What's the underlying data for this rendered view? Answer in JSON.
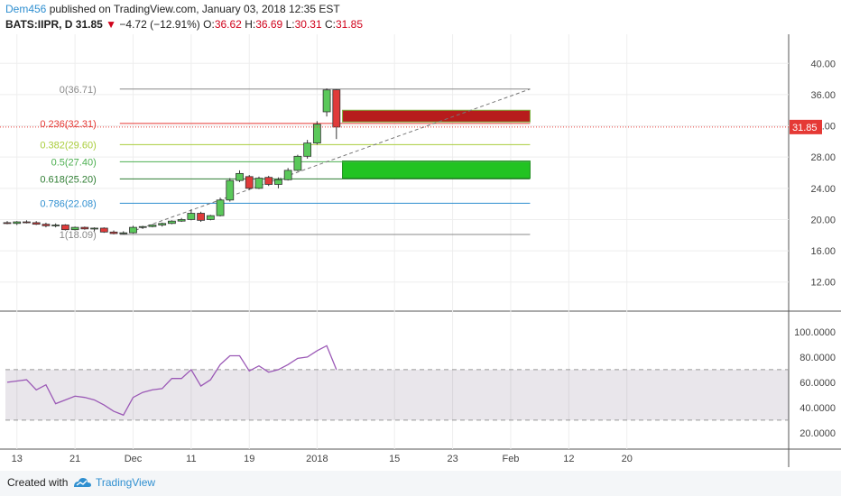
{
  "header": {
    "author": "Dem456",
    "published": "published on TradingView.com, January 03, 2018 12:35 EST",
    "symbol": "BATS:IIPR, D",
    "last": "31.85",
    "down_arrow": "▼",
    "change": "−4.72 (−12.91%)",
    "o_label": "O:",
    "o_value": "36.62",
    "h_label": "H:",
    "h_value": "36.69",
    "l_label": "L:",
    "l_value": "30.31",
    "c_label": "C:",
    "c_value": "31.85"
  },
  "footer": {
    "created_with": "Created with",
    "brand": "TradingView"
  },
  "colors": {
    "up": "#5ac85a",
    "down": "#e03a3a",
    "rsi": "#9b59b6",
    "price_line": "#e53935",
    "fib_0_236": "#e53935",
    "fib_0_382": "#aacd3c",
    "fib_0_5": "#4caf50",
    "fib_0_618": "#2e7d32",
    "fib_0_786": "#2f8fd0",
    "fib_neutral": "#888888"
  },
  "chart_data": {
    "type": "candlestick",
    "price_axis": {
      "range": [
        8.5,
        43.5
      ],
      "ticks": [
        "12.00",
        "16.00",
        "20.00",
        "24.00",
        "28.00",
        "32.00",
        "36.00",
        "40.00"
      ]
    },
    "rsi_axis": {
      "range": [
        7,
        115
      ],
      "ticks": [
        "20.0000",
        "40.0000",
        "60.0000",
        "80.0000",
        "100.0000"
      ],
      "bands": [
        30,
        70
      ]
    },
    "x_axis": {
      "ticks": [
        {
          "label": "13",
          "i": 1
        },
        {
          "label": "21",
          "i": 7
        },
        {
          "label": "Dec",
          "i": 13
        },
        {
          "label": "11",
          "i": 19
        },
        {
          "label": "19",
          "i": 25
        },
        {
          "label": "2018",
          "i": 32
        },
        {
          "label": "15",
          "i": 40
        },
        {
          "label": "23",
          "i": 46
        },
        {
          "label": "Feb",
          "i": 52
        },
        {
          "label": "12",
          "i": 58
        },
        {
          "label": "20",
          "i": 64
        }
      ]
    },
    "last_price_label": "31.85",
    "candles": [
      {
        "i": 0,
        "o": 19.6,
        "h": 19.8,
        "l": 19.4,
        "c": 19.5
      },
      {
        "i": 1,
        "o": 19.5,
        "h": 19.8,
        "l": 19.3,
        "c": 19.7
      },
      {
        "i": 2,
        "o": 19.7,
        "h": 19.9,
        "l": 19.5,
        "c": 19.6
      },
      {
        "i": 3,
        "o": 19.6,
        "h": 19.8,
        "l": 19.3,
        "c": 19.4
      },
      {
        "i": 4,
        "o": 19.4,
        "h": 19.6,
        "l": 19.0,
        "c": 19.2
      },
      {
        "i": 5,
        "o": 19.2,
        "h": 19.5,
        "l": 19.0,
        "c": 19.3
      },
      {
        "i": 6,
        "o": 19.3,
        "h": 19.4,
        "l": 18.6,
        "c": 18.7
      },
      {
        "i": 7,
        "o": 18.7,
        "h": 19.1,
        "l": 18.6,
        "c": 19.0
      },
      {
        "i": 8,
        "o": 19.0,
        "h": 19.1,
        "l": 18.7,
        "c": 18.8
      },
      {
        "i": 9,
        "o": 18.8,
        "h": 19.0,
        "l": 18.5,
        "c": 18.9
      },
      {
        "i": 10,
        "o": 18.9,
        "h": 19.0,
        "l": 18.3,
        "c": 18.4
      },
      {
        "i": 11,
        "o": 18.4,
        "h": 18.6,
        "l": 18.1,
        "c": 18.2
      },
      {
        "i": 12,
        "o": 18.2,
        "h": 18.5,
        "l": 18.1,
        "c": 18.3
      },
      {
        "i": 13,
        "o": 18.3,
        "h": 19.2,
        "l": 18.2,
        "c": 19.0
      },
      {
        "i": 14,
        "o": 19.0,
        "h": 19.2,
        "l": 18.8,
        "c": 19.1
      },
      {
        "i": 15,
        "o": 19.1,
        "h": 19.4,
        "l": 19.0,
        "c": 19.3
      },
      {
        "i": 16,
        "o": 19.3,
        "h": 19.6,
        "l": 19.1,
        "c": 19.5
      },
      {
        "i": 17,
        "o": 19.5,
        "h": 19.9,
        "l": 19.4,
        "c": 19.8
      },
      {
        "i": 18,
        "o": 19.8,
        "h": 20.2,
        "l": 19.7,
        "c": 20.0
      },
      {
        "i": 19,
        "o": 20.0,
        "h": 21.3,
        "l": 19.9,
        "c": 20.8
      },
      {
        "i": 20,
        "o": 20.8,
        "h": 21.0,
        "l": 19.7,
        "c": 19.9
      },
      {
        "i": 21,
        "o": 20.0,
        "h": 20.6,
        "l": 19.9,
        "c": 20.5
      },
      {
        "i": 22,
        "o": 20.5,
        "h": 22.8,
        "l": 20.4,
        "c": 22.5
      },
      {
        "i": 23,
        "o": 22.5,
        "h": 25.3,
        "l": 22.3,
        "c": 25.0
      },
      {
        "i": 24,
        "o": 25.0,
        "h": 26.3,
        "l": 24.8,
        "c": 25.9
      },
      {
        "i": 25,
        "o": 25.5,
        "h": 25.7,
        "l": 23.8,
        "c": 24.0
      },
      {
        "i": 26,
        "o": 24.0,
        "h": 25.5,
        "l": 23.9,
        "c": 25.3
      },
      {
        "i": 27,
        "o": 25.4,
        "h": 25.6,
        "l": 24.3,
        "c": 24.5
      },
      {
        "i": 28,
        "o": 24.5,
        "h": 25.4,
        "l": 24.0,
        "c": 25.1
      },
      {
        "i": 29,
        "o": 25.1,
        "h": 26.6,
        "l": 25.0,
        "c": 26.3
      },
      {
        "i": 30,
        "o": 26.3,
        "h": 28.3,
        "l": 26.2,
        "c": 28.1
      },
      {
        "i": 31,
        "o": 28.1,
        "h": 30.2,
        "l": 27.8,
        "c": 29.8
      },
      {
        "i": 32,
        "o": 29.8,
        "h": 32.6,
        "l": 29.6,
        "c": 32.2
      },
      {
        "i": 33,
        "o": 33.8,
        "h": 36.8,
        "l": 33.2,
        "c": 36.6
      },
      {
        "i": 34,
        "o": 36.62,
        "h": 36.69,
        "l": 30.31,
        "c": 31.85
      }
    ],
    "rsi": [
      {
        "i": 0,
        "v": 60
      },
      {
        "i": 1,
        "v": 61
      },
      {
        "i": 2,
        "v": 62
      },
      {
        "i": 3,
        "v": 54
      },
      {
        "i": 4,
        "v": 58
      },
      {
        "i": 5,
        "v": 43
      },
      {
        "i": 6,
        "v": 46
      },
      {
        "i": 7,
        "v": 49
      },
      {
        "i": 8,
        "v": 48
      },
      {
        "i": 9,
        "v": 46
      },
      {
        "i": 10,
        "v": 42
      },
      {
        "i": 11,
        "v": 37
      },
      {
        "i": 12,
        "v": 34
      },
      {
        "i": 13,
        "v": 48
      },
      {
        "i": 14,
        "v": 52
      },
      {
        "i": 15,
        "v": 54
      },
      {
        "i": 16,
        "v": 55
      },
      {
        "i": 17,
        "v": 63
      },
      {
        "i": 18,
        "v": 63
      },
      {
        "i": 19,
        "v": 70
      },
      {
        "i": 20,
        "v": 57
      },
      {
        "i": 21,
        "v": 62
      },
      {
        "i": 22,
        "v": 74
      },
      {
        "i": 23,
        "v": 81
      },
      {
        "i": 24,
        "v": 81
      },
      {
        "i": 25,
        "v": 69
      },
      {
        "i": 26,
        "v": 73
      },
      {
        "i": 27,
        "v": 68
      },
      {
        "i": 28,
        "v": 70
      },
      {
        "i": 29,
        "v": 74
      },
      {
        "i": 30,
        "v": 79
      },
      {
        "i": 31,
        "v": 80
      },
      {
        "i": 32,
        "v": 85
      },
      {
        "i": 33,
        "v": 89
      },
      {
        "i": 34,
        "v": 70
      }
    ],
    "fib_levels": [
      {
        "label": "0(36.71)",
        "price": 36.71,
        "key": "fib_neutral"
      },
      {
        "label": "0.236(32.31)",
        "price": 32.31,
        "key": "fib_0_236"
      },
      {
        "label": "0.382(29.60)",
        "price": 29.6,
        "key": "fib_0_382"
      },
      {
        "label": "0.5(27.40)",
        "price": 27.4,
        "key": "fib_0_5"
      },
      {
        "label": "0.618(25.20)",
        "price": 25.2,
        "key": "fib_0_618"
      },
      {
        "label": "0.786(22.08)",
        "price": 22.08,
        "key": "fib_0_786"
      },
      {
        "label": "1(18.09)",
        "price": 18.09,
        "key": "fib_neutral"
      }
    ],
    "fib_range": {
      "start_i": 12,
      "end_i": 54
    },
    "zones": [
      {
        "top": 34.0,
        "bottom": 32.5,
        "start_i": 35,
        "end_i": 54,
        "fill": "#b71c1c",
        "stroke": "#7cb342"
      },
      {
        "top": 27.5,
        "bottom": 25.3,
        "start_i": 35,
        "end_i": 54,
        "fill": "#22c322",
        "stroke": "#1b8e1b"
      }
    ],
    "trendline": {
      "x1_i": 12,
      "y1": 18.09,
      "x2_i": 54,
      "y2": 36.71
    }
  }
}
